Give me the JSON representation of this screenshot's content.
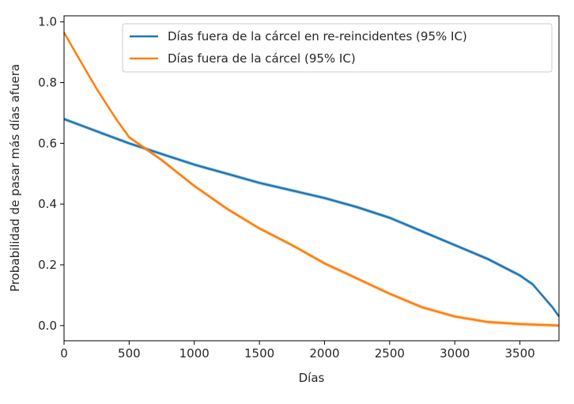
{
  "chart_data": {
    "type": "line",
    "xlabel": "Días",
    "ylabel": "Probabilidad de pasar más días afuera",
    "xlim": [
      0,
      3800
    ],
    "ylim": [
      -0.05,
      1.02
    ],
    "x_ticks": [
      0,
      500,
      1000,
      1500,
      2000,
      2500,
      3000,
      3500
    ],
    "y_ticks": [
      0.0,
      0.2,
      0.4,
      0.6,
      0.8,
      1.0
    ],
    "x_tick_labels": [
      "0",
      "500",
      "1000",
      "1500",
      "2000",
      "2500",
      "3000",
      "3500"
    ],
    "y_tick_labels": [
      "0.0",
      "0.2",
      "0.4",
      "0.6",
      "0.8",
      "1.0"
    ],
    "grid": false,
    "legend_position": "top-right",
    "series": [
      {
        "name": "Días fuera de la cárcel en re-reincidentes (95% IC)",
        "color": "#1f77b4",
        "x": [
          0,
          250,
          500,
          750,
          1000,
          1250,
          1500,
          1750,
          2000,
          2250,
          2500,
          2750,
          3000,
          3250,
          3500,
          3600,
          3650,
          3700,
          3750,
          3800
        ],
        "y": [
          0.68,
          0.64,
          0.6,
          0.565,
          0.53,
          0.5,
          0.47,
          0.445,
          0.42,
          0.39,
          0.355,
          0.31,
          0.265,
          0.22,
          0.165,
          0.135,
          0.11,
          0.085,
          0.06,
          0.03
        ]
      },
      {
        "name": "Días fuera de la cárcel (95% IC)",
        "color": "#ff7f0e",
        "x": [
          0,
          100,
          250,
          400,
          500,
          750,
          1000,
          1250,
          1500,
          1750,
          2000,
          2250,
          2500,
          2750,
          3000,
          3250,
          3500,
          3800
        ],
        "y": [
          0.965,
          0.89,
          0.78,
          0.68,
          0.62,
          0.545,
          0.46,
          0.385,
          0.32,
          0.265,
          0.205,
          0.155,
          0.105,
          0.06,
          0.03,
          0.012,
          0.005,
          0.0
        ]
      }
    ]
  }
}
